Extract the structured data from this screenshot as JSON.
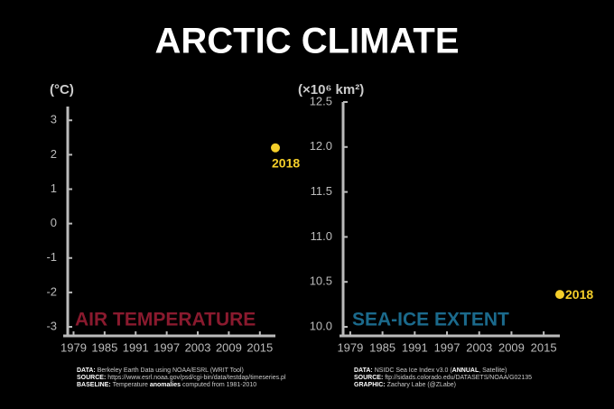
{
  "title": "ARCTIC CLIMATE",
  "chart_data": [
    {
      "type": "scatter",
      "ylabel": "(°C)",
      "panel_label": "AIR TEMPERATURE",
      "panel_label_color": "#8a1a2e",
      "x": [
        2018
      ],
      "values": [
        2.2
      ],
      "color": "#f5cf2a",
      "xlim": [
        1977,
        2018
      ],
      "xticks": [
        1979,
        1985,
        1991,
        1997,
        2003,
        2009,
        2015
      ],
      "ylim": [
        -3,
        3.4
      ],
      "yticks": [
        -3,
        -2,
        -1,
        0,
        1,
        2,
        3
      ],
      "notes": [
        {
          "label": "DATA:",
          "text": [
            "Berkeley Earth Data using NOAA/ESRL (WRIT Tool)"
          ]
        },
        {
          "label": "SOURCE:",
          "text": [
            "https://www.esrl.noaa.gov/psd/cgi-bin/data/testdap/timeseries.pl"
          ]
        },
        {
          "label": "BASELINE:",
          "text": [
            "Temperature ",
            "anomalies",
            " computed from 1981-2010"
          ]
        }
      ]
    },
    {
      "type": "scatter",
      "ylabel": "(×10⁶ km²)",
      "panel_label": "SEA-ICE EXTENT",
      "panel_label_color": "#1b6a8c",
      "x": [
        2018
      ],
      "values": [
        10.36
      ],
      "color": "#f5cf2a",
      "xlim": [
        1977,
        2018
      ],
      "xticks": [
        1979,
        1985,
        1991,
        1997,
        2003,
        2009,
        2015
      ],
      "ylim": [
        10.0,
        12.5
      ],
      "yticks": [
        {
          "value": 10,
          "label": "10.0"
        },
        {
          "value": 10.5,
          "label": "10.5"
        },
        {
          "value": 11,
          "label": "11.0"
        },
        {
          "value": 11.5,
          "label": "11.5"
        },
        {
          "value": 12,
          "label": "12.0"
        },
        {
          "value": 12.5,
          "label": "12.5"
        }
      ],
      "notes": [
        {
          "label": "DATA:",
          "text": [
            "NSIDC Sea Ice Index v3.0 (",
            "ANNUAL",
            ", Satellite)"
          ]
        },
        {
          "label": "SOURCE:",
          "text": [
            "ftp://sidads.colorado.edu/DATASETS/NOAA/G02135"
          ]
        },
        {
          "label": "GRAPHIC:",
          "text": [
            "Zachary Labe (@ZLabe)"
          ]
        }
      ]
    }
  ]
}
